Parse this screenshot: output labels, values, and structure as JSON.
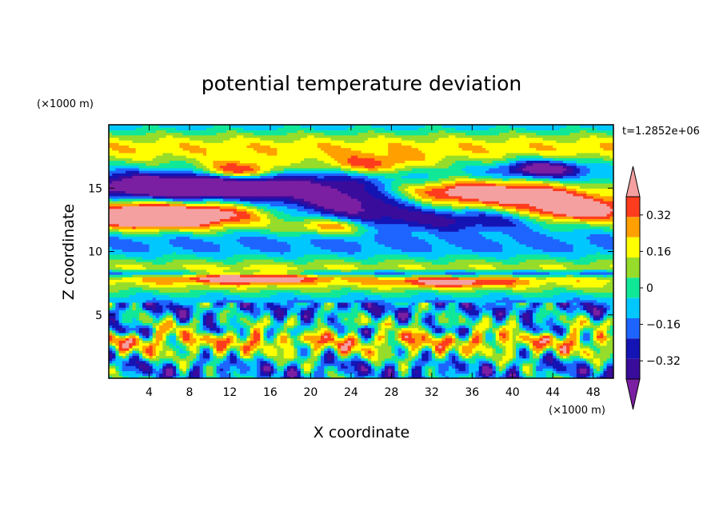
{
  "chart_data": {
    "type": "heatmap",
    "title": "potential temperature deviation",
    "xlabel": "X coordinate",
    "ylabel": "Z coordinate",
    "x_unit": "(×1000 m)",
    "y_unit": "(×1000 m)",
    "time_label": "t=1.2852e+06",
    "xlim": [
      0,
      50
    ],
    "ylim": [
      0,
      20
    ],
    "x_ticks": [
      4,
      8,
      12,
      16,
      20,
      24,
      28,
      32,
      36,
      40,
      44,
      48
    ],
    "y_ticks": [
      5,
      10,
      15
    ],
    "colorbar": {
      "levels": [
        -0.4,
        -0.32,
        -0.24,
        -0.16,
        -0.08,
        0,
        0.08,
        0.16,
        0.24,
        0.32,
        0.4
      ],
      "labeled_ticks": [
        0.32,
        0.16,
        0,
        -0.16,
        -0.32
      ],
      "tick_labels": [
        "0.32",
        "0.16",
        "0",
        "−0.16",
        "−0.32"
      ],
      "colors": [
        "#7b1fa2",
        "#3a0c9c",
        "#1414b4",
        "#1e64ff",
        "#00c8ff",
        "#10e898",
        "#96dc2a",
        "#ffff00",
        "#ffa000",
        "#ff3c1e",
        "#f5a0a0"
      ],
      "extend": "both"
    },
    "grid": false
  }
}
